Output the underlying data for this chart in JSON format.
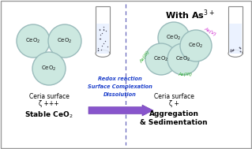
{
  "bg_color": "#ffffff",
  "border_color": "#999999",
  "title": "With As$^{3+}$",
  "left_label1": "Ceria surface",
  "left_label2": "ζ +++",
  "left_label3": "Stable CeO$_2$",
  "right_label1": "Ceria surface",
  "right_label2": "ζ +",
  "right_label3": "Aggregation\n& Sedimentation",
  "center_text1": "Redox reaction",
  "center_text2": "Surface Complexation",
  "center_text3": "Dissolution",
  "sphere_fill": "#cce8e0",
  "sphere_edge": "#99bbbb",
  "ceo2_color": "#111111",
  "as3_color": "#22aa22",
  "as5_color": "#cc22cc",
  "dashed_line_color": "#6666bb",
  "center_text_color": "#2244cc",
  "arrow_face": "#8855cc",
  "arrow_edge": "#6633aa",
  "tube_fill": "#e8f0ff",
  "tube_edge": "#888888",
  "particle_color": "#555566"
}
